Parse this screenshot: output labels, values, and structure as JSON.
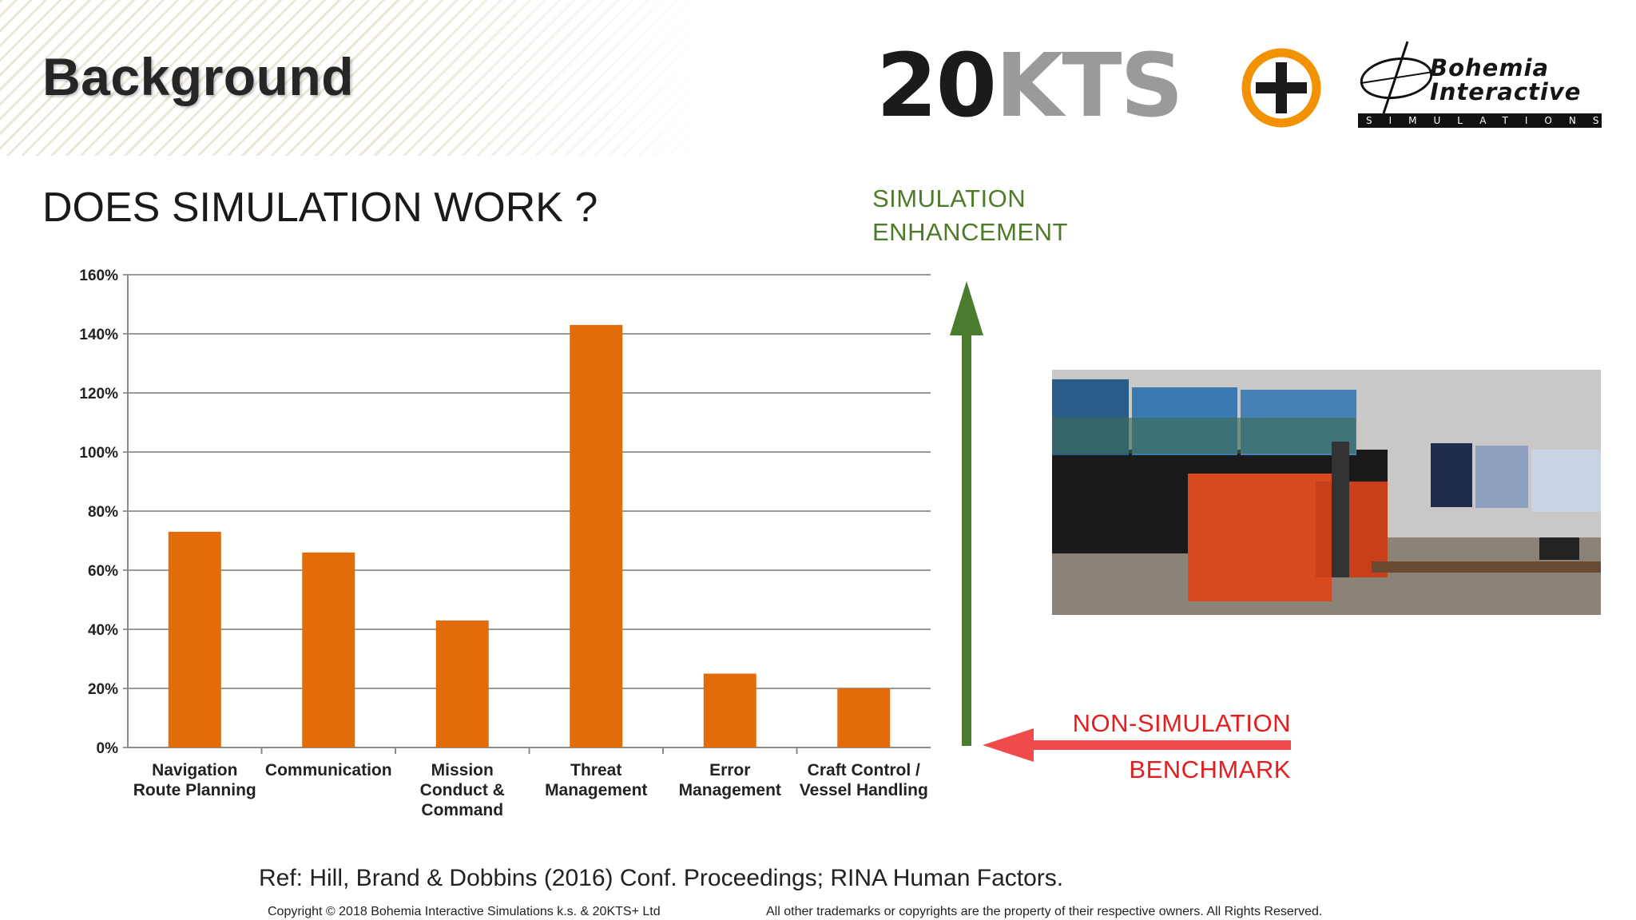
{
  "slide": {
    "title": "Background",
    "subtitle": "DOES SIMULATION WORK ?",
    "simulation_label": [
      "SIMULATION",
      "ENHANCEMENT"
    ],
    "nonsim_label": [
      "NON-SIMULATION",
      "BENCHMARK"
    ],
    "reference": "Ref: Hill, Brand & Dobbins (2016) Conf. Proceedings; RINA Human Factors.",
    "copyright": "Copyright © 2018 Bohemia Interactive Simulations k.s. & 20KTS+ Ltd",
    "trademarks": "All other trademarks or copyrights are the property of their respective owners. All Rights Reserved."
  },
  "logos": {
    "kts": {
      "dark": "20",
      "grey": "KTS"
    },
    "bis": {
      "line1": "Bohemia",
      "line2": "Interactive",
      "bar": "SIMULATIONS"
    }
  },
  "colors": {
    "bar": "#e36c0a",
    "simulation_arrow": "#4a7c2f",
    "nonsim_arrow": "#f04a4a",
    "kts_orange": "#f39200"
  },
  "chart_data": {
    "type": "bar",
    "categories": [
      [
        "Navigation",
        "Route Planning"
      ],
      [
        "Communication"
      ],
      [
        "Mission",
        "Conduct &",
        "Command"
      ],
      [
        "Threat",
        "Management"
      ],
      [
        "Error",
        "Management"
      ],
      [
        "Craft Control /",
        "Vessel Handling"
      ]
    ],
    "values": [
      73,
      66,
      43,
      143,
      25,
      20
    ],
    "yticks": [
      "0%",
      "20%",
      "40%",
      "60%",
      "80%",
      "100%",
      "120%",
      "140%",
      "160%"
    ],
    "ylim": [
      0,
      160
    ],
    "ystep": 20,
    "grid": true
  }
}
